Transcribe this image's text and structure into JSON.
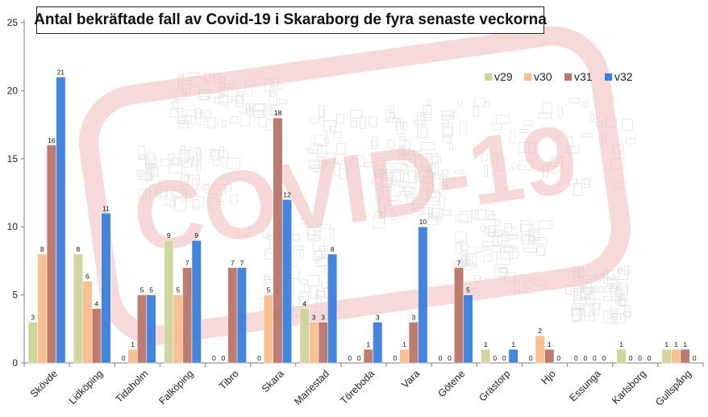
{
  "chart_data": {
    "type": "bar",
    "title": "Antal bekräftade fall av Covid-19 i Skaraborg de fyra senaste veckorna",
    "xlabel": "",
    "ylabel": "",
    "ylim": [
      0,
      25
    ],
    "yticks": [
      0,
      5,
      10,
      15,
      20,
      25
    ],
    "grid": false,
    "legend_position": "top-right",
    "watermark": "COVID-19",
    "categories": [
      "Skövde",
      "Lidköping",
      "Tidaholm",
      "Falköping",
      "Tibro",
      "Skara",
      "Mariestad",
      "Töreboda",
      "Vara",
      "Götene",
      "Grästorp",
      "Hjo",
      "Essunga",
      "Karlsborg",
      "Gullspång"
    ],
    "series": [
      {
        "name": "v29",
        "color": "#cfd49a",
        "values": [
          3,
          8,
          0,
          9,
          0,
          0,
          4,
          0,
          0,
          0,
          1,
          0,
          0,
          1,
          1
        ]
      },
      {
        "name": "v30",
        "color": "#f7be8f",
        "values": [
          8,
          6,
          1,
          5,
          0,
          5,
          3,
          0,
          1,
          0,
          0,
          2,
          0,
          0,
          1
        ]
      },
      {
        "name": "v31",
        "color": "#b9766a",
        "values": [
          16,
          4,
          5,
          7,
          7,
          18,
          3,
          1,
          3,
          7,
          0,
          1,
          0,
          0,
          1
        ]
      },
      {
        "name": "v32",
        "color": "#3b7fde",
        "values": [
          21,
          11,
          5,
          9,
          7,
          12,
          8,
          3,
          10,
          5,
          1,
          0,
          0,
          0,
          0
        ]
      }
    ]
  }
}
